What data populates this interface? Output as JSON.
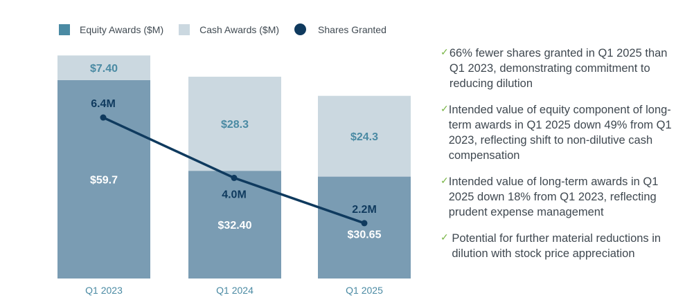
{
  "colors": {
    "equity": "#7a9cb3",
    "cash": "#cbd8e0",
    "shares": "#0f3a5e",
    "cash_label": "#4a8aa3",
    "equity_legend": "#4a8aa3",
    "check": "#7ab648",
    "category_label": "#4a8aa3"
  },
  "chart_data": {
    "type": "bar",
    "stacked": true,
    "categories": [
      "Q1 2023",
      "Q1 2024",
      "Q1 2025"
    ],
    "series": [
      {
        "name": "Equity Awards ($M)",
        "values": [
          59.7,
          32.4,
          30.65
        ],
        "labels": [
          "$59.7",
          "$32.40",
          "$30.65"
        ]
      },
      {
        "name": "Cash Awards ($M)",
        "values": [
          7.4,
          28.3,
          24.3
        ],
        "labels": [
          "$7.40",
          "$28.3",
          "$24.3"
        ]
      }
    ],
    "line_series": {
      "name": "Shares Granted",
      "values": [
        6.4,
        4.0,
        2.2
      ],
      "unit": "M",
      "labels": [
        "6.4M",
        "4.0M",
        "2.2M"
      ]
    },
    "legend": [
      "Equity Awards ($M)",
      "Cash Awards ($M)",
      "Shares Granted"
    ],
    "legend_position": "top-left",
    "grid": false
  },
  "bullets": [
    "66% fewer shares granted in Q1 2025 than Q1 2023, demonstrating commitment to reducing dilution",
    "Intended value of equity component of long-term awards in Q1 2025 down 49% from Q1 2023, reflecting shift to non-dilutive cash compensation",
    "Intended value of long-term awards in Q1 2025 down 18% from Q1 2023, reflecting prudent expense management",
    "Potential for further material reductions in dilution with stock price appreciation"
  ],
  "check_icon": "✓"
}
